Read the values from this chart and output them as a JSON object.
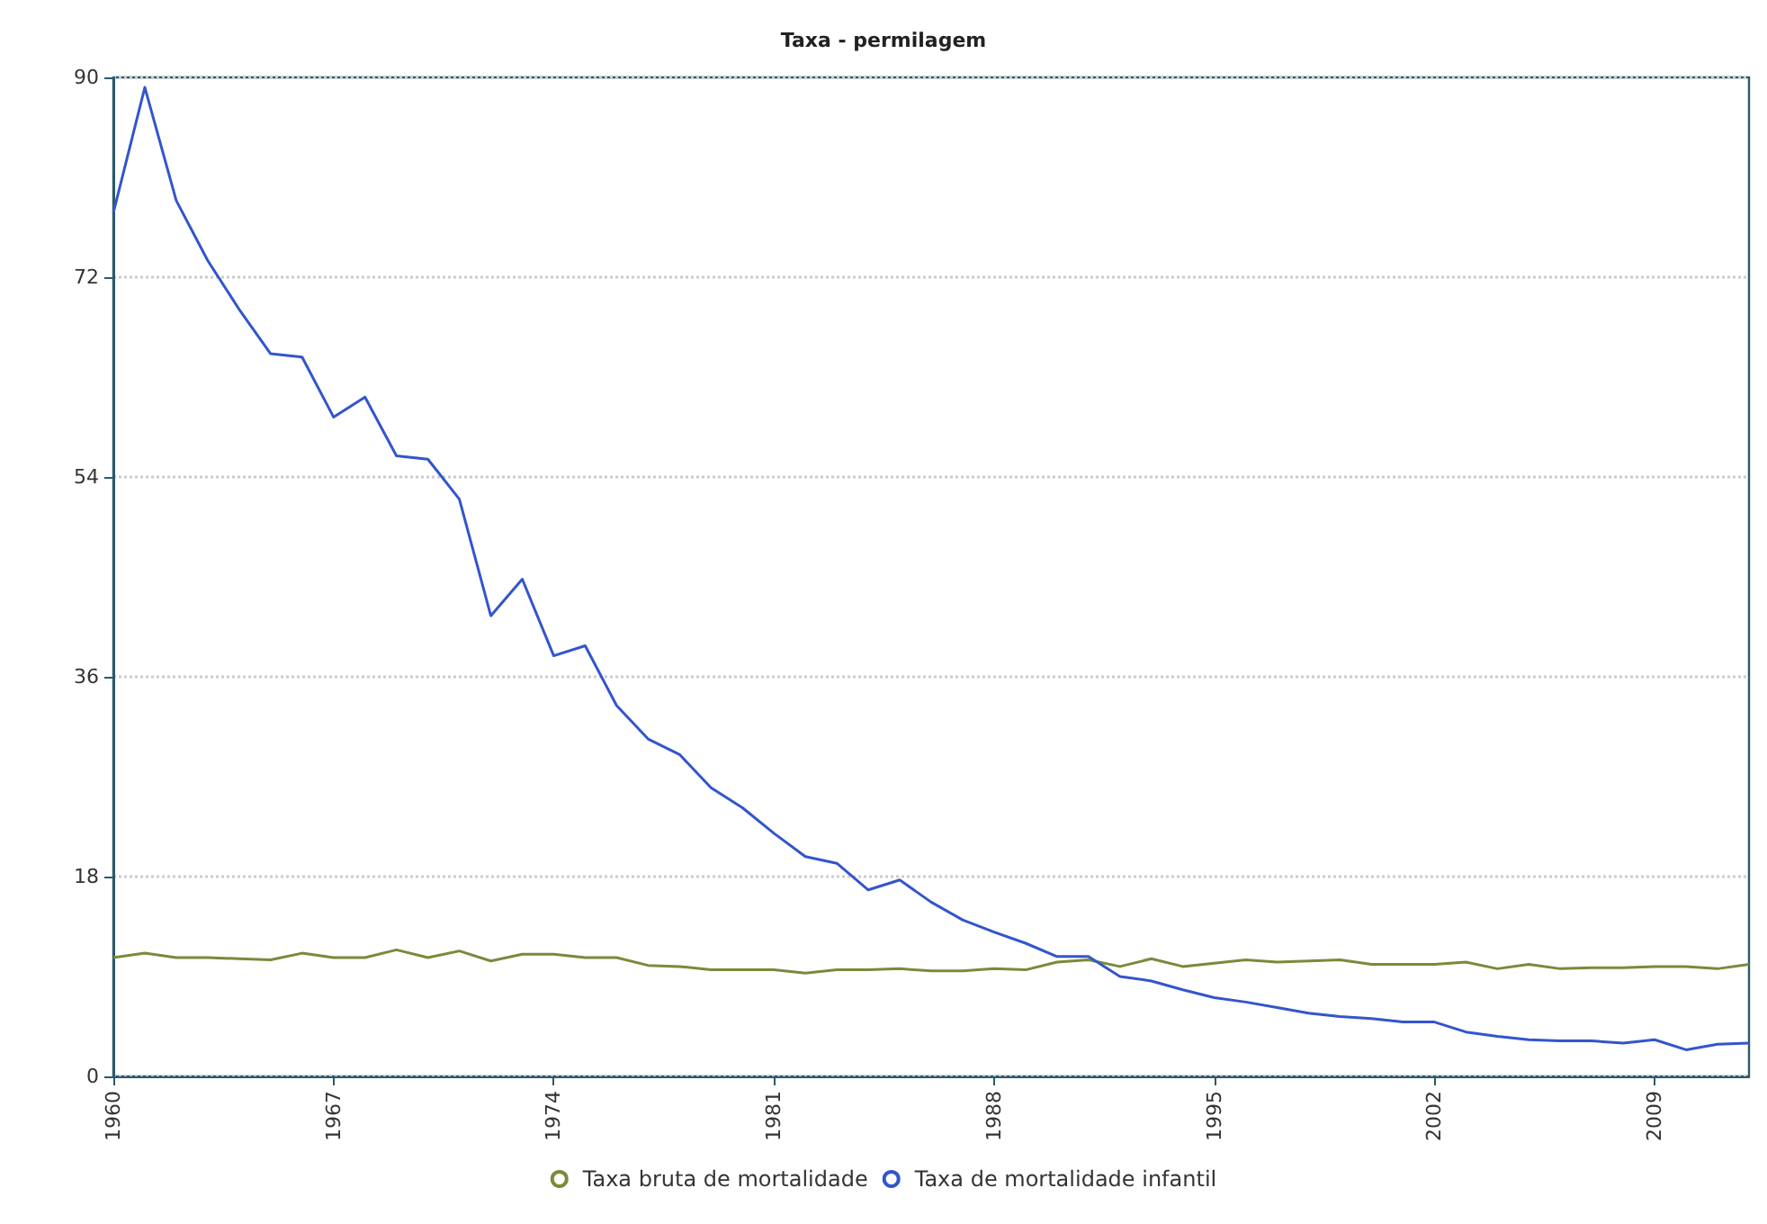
{
  "chart_data": {
    "type": "line",
    "title": "Taxa - permilagem",
    "x": [
      1960,
      1961,
      1962,
      1963,
      1964,
      1965,
      1966,
      1967,
      1968,
      1969,
      1970,
      1971,
      1972,
      1973,
      1974,
      1975,
      1976,
      1977,
      1978,
      1979,
      1980,
      1981,
      1982,
      1983,
      1984,
      1985,
      1986,
      1987,
      1988,
      1989,
      1990,
      1991,
      1992,
      1993,
      1994,
      1995,
      1996,
      1997,
      1998,
      1999,
      2000,
      2001,
      2002,
      2003,
      2004,
      2005,
      2006,
      2007,
      2008,
      2009,
      2010,
      2011,
      2012
    ],
    "series": [
      {
        "name": "Taxa bruta de mortalidade",
        "color": "#7a8a3a",
        "values": [
          10.7,
          11.1,
          10.7,
          10.7,
          10.6,
          10.5,
          11.1,
          10.7,
          10.7,
          11.4,
          10.7,
          11.3,
          10.4,
          11.0,
          11.0,
          10.7,
          10.7,
          10.0,
          9.9,
          9.6,
          9.6,
          9.6,
          9.3,
          9.6,
          9.6,
          9.7,
          9.5,
          9.5,
          9.7,
          9.6,
          10.3,
          10.5,
          9.9,
          10.6,
          9.9,
          10.2,
          10.5,
          10.3,
          10.4,
          10.5,
          10.1,
          10.1,
          10.1,
          10.3,
          9.7,
          10.1,
          9.7,
          9.8,
          9.8,
          9.9,
          9.9,
          9.7,
          10.1
        ]
      },
      {
        "name": "Taxa de mortalidade infantil",
        "color": "#3355cc",
        "values": [
          77.8,
          89.1,
          78.9,
          73.5,
          69.1,
          65.1,
          64.8,
          59.4,
          61.2,
          55.9,
          55.6,
          52.0,
          41.5,
          44.8,
          37.9,
          38.8,
          33.4,
          30.4,
          29.0,
          26.0,
          24.2,
          21.9,
          19.8,
          19.2,
          16.8,
          17.7,
          15.7,
          14.1,
          13.0,
          12.0,
          10.8,
          10.8,
          9.0,
          8.6,
          7.8,
          7.1,
          6.7,
          6.2,
          5.7,
          5.4,
          5.2,
          4.9,
          4.9,
          4.0,
          3.6,
          3.3,
          3.2,
          3.2,
          3.0,
          3.3,
          2.4,
          2.9,
          3.0
        ]
      }
    ],
    "xlim": [
      1960,
      2012
    ],
    "xticks": [
      1960,
      1967,
      1974,
      1981,
      1988,
      1995,
      2002,
      2009
    ],
    "ylim": [
      0,
      90
    ],
    "yticks": [
      0,
      18,
      36,
      54,
      72,
      90
    ],
    "grid": "y",
    "legend": "bottom",
    "marker": "none",
    "line_style": "solid"
  }
}
